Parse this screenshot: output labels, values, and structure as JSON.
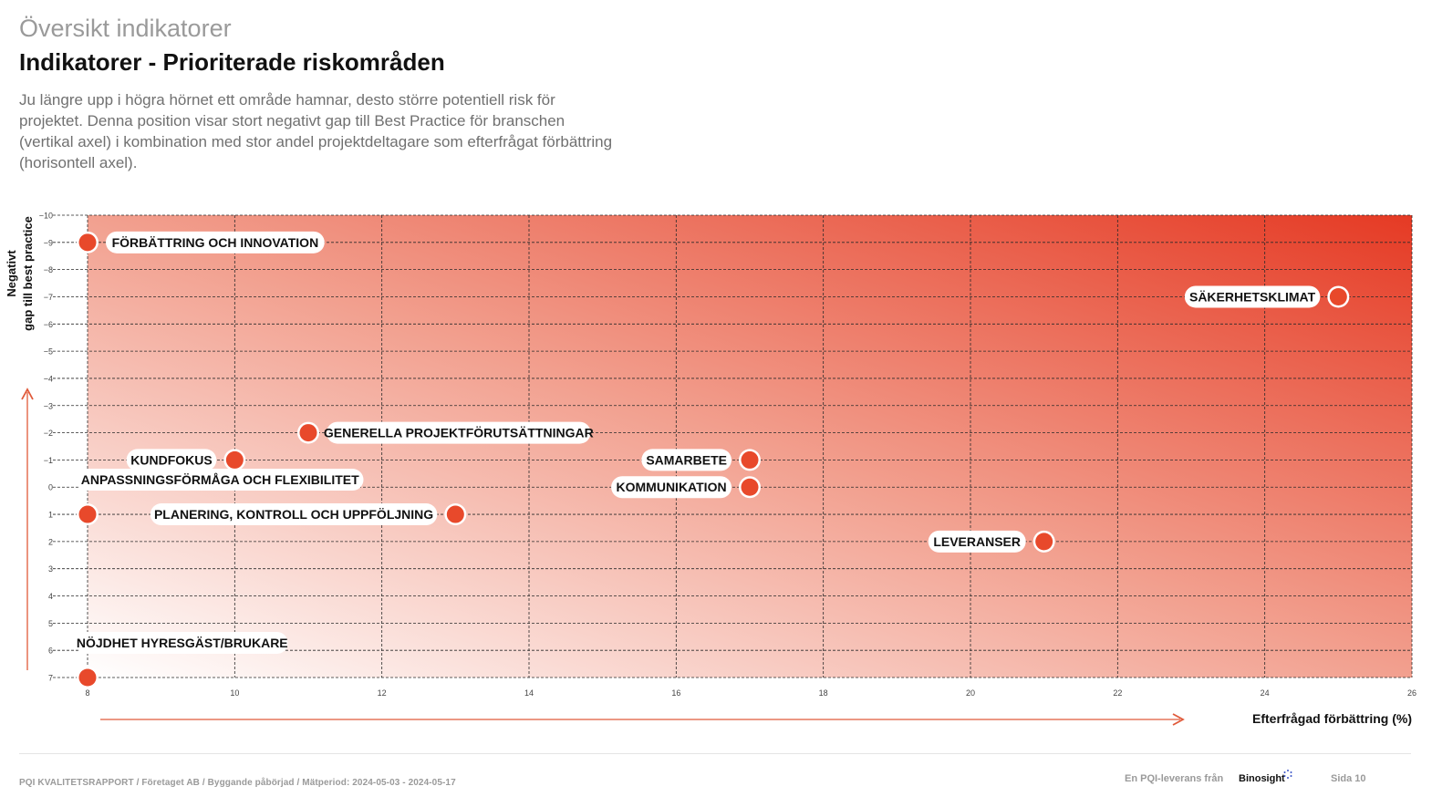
{
  "header": {
    "section_title": "Översikt indikatorer",
    "page_title": "Indikatorer - Prioriterade riskområden",
    "description": "Ju längre upp i högra hörnet ett område hamnar, desto större potentiell risk för projektet. Denna position visar stort negativt gap till Best Practice för branschen (vertikal axel) i kombination med stor andel projektdeltagare som efterfrågat förbättring (horisontell axel)."
  },
  "chart_data": {
    "type": "scatter",
    "title": "",
    "xlabel": "Efterfrågad förbättring (%)",
    "ylabel_lines": [
      "Negativt",
      "gap till best practice"
    ],
    "xlim": [
      8,
      26
    ],
    "ylim": [
      7,
      -10
    ],
    "x_ticks": [
      8,
      10,
      12,
      14,
      16,
      18,
      20,
      22,
      24,
      26
    ],
    "y_ticks": [
      -10,
      -9,
      -8,
      -7,
      -6,
      -5,
      -4,
      -3,
      -2,
      -1,
      0,
      1,
      2,
      3,
      4,
      5,
      6,
      7
    ],
    "y_tick_labels": [
      "−10",
      "−9",
      "−8",
      "−7",
      "−6",
      "−5",
      "−4",
      "−3",
      "−2",
      "−1",
      "0",
      "1",
      "2",
      "3",
      "4",
      "5",
      "6",
      "7"
    ],
    "grid": true,
    "background": "gradient white (bottom-left) to red (top-right)",
    "points": [
      {
        "label": "FÖRBÄTTRING OCH INNOVATION",
        "x": 8,
        "y": -9,
        "label_side": "right"
      },
      {
        "label": "SÄKERHETSKLIMAT",
        "x": 25,
        "y": -7,
        "label_side": "left"
      },
      {
        "label": "GENERELLA PROJEKTFÖRUTSÄTTNINGAR",
        "x": 11,
        "y": -2,
        "label_side": "right"
      },
      {
        "label": "KUNDFOKUS",
        "x": 10,
        "y": -1,
        "label_side": "left"
      },
      {
        "label": "SAMARBETE",
        "x": 17,
        "y": -1,
        "label_side": "left"
      },
      {
        "label": "KOMMUNIKATION",
        "x": 17,
        "y": 0,
        "label_side": "left"
      },
      {
        "label": "ANPASSNINGSFÖRMÅGA OCH FLEXIBILITET",
        "x": 8,
        "y": 1,
        "label_side": "above"
      },
      {
        "label": "PLANERING, KONTROLL OCH UPPFÖLJNING",
        "x": 13,
        "y": 1,
        "label_side": "left"
      },
      {
        "label": "LEVERANSER",
        "x": 21,
        "y": 2,
        "label_side": "left"
      },
      {
        "label": "NÖJDHET HYRESGÄST/BRUKARE",
        "x": 8,
        "y": 7,
        "label_side": "above"
      }
    ]
  },
  "colors": {
    "accent": "#e8492b",
    "gradient_end": "#e53a24",
    "arrow": "#e05a3a"
  },
  "footer": {
    "report_info": "PQI KVALITETSRAPPORT / Företaget AB / Byggande påbörjad / Mätperiod: 2024-05-03 - 2024-05-17",
    "credit": "En PQI-leverans från",
    "brand": "Binosight",
    "page": "Sida 10"
  }
}
